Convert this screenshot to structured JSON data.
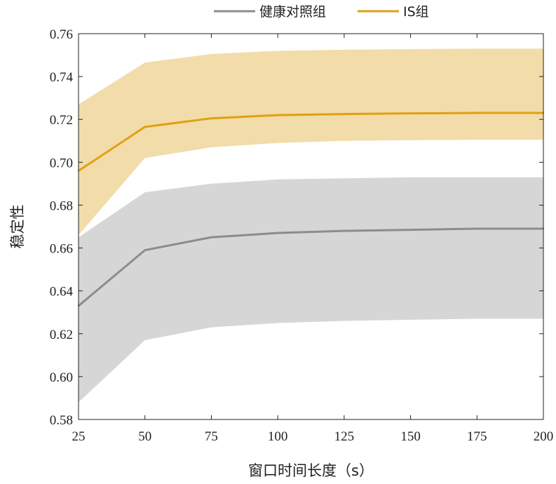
{
  "chart_data": {
    "type": "line",
    "xlabel": "窗口时间长度（s）",
    "ylabel": "稳定性",
    "xlim": [
      25,
      200
    ],
    "ylim": [
      0.58,
      0.76
    ],
    "x_ticks": [
      "25",
      "50",
      "75",
      "100",
      "125",
      "150",
      "175",
      "200"
    ],
    "y_ticks": [
      "0.58",
      "0.60",
      "0.62",
      "0.64",
      "0.66",
      "0.68",
      "0.70",
      "0.72",
      "0.74",
      "0.76"
    ],
    "legend_position": "top-center",
    "grid": false,
    "x": [
      25,
      50,
      75,
      100,
      125,
      150,
      175,
      200
    ],
    "series": [
      {
        "name": "健康对照组",
        "color": "#8c8c8c",
        "band_color": "#d6d6d6",
        "values": [
          0.633,
          0.659,
          0.665,
          0.667,
          0.668,
          0.6685,
          0.669,
          0.669
        ],
        "upper": [
          0.665,
          0.686,
          0.69,
          0.692,
          0.6925,
          0.693,
          0.693,
          0.693
        ],
        "lower": [
          0.588,
          0.617,
          0.623,
          0.625,
          0.626,
          0.6265,
          0.627,
          0.627
        ]
      },
      {
        "name": "IS组",
        "color": "#e0a012",
        "band_color": "#f0d69a",
        "values": [
          0.696,
          0.7165,
          0.7205,
          0.722,
          0.7225,
          0.7228,
          0.723,
          0.723
        ],
        "upper": [
          0.727,
          0.7465,
          0.7505,
          0.752,
          0.7525,
          0.7528,
          0.753,
          0.753
        ],
        "lower": [
          0.666,
          0.702,
          0.707,
          0.709,
          0.71,
          0.7103,
          0.7105,
          0.7105
        ]
      }
    ]
  }
}
